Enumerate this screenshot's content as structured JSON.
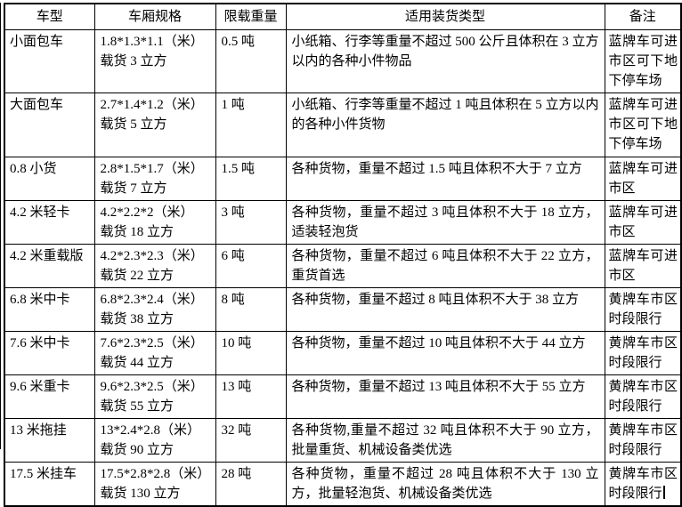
{
  "colors": {
    "text": "#000000",
    "border": "#000000",
    "background": "#ffffff"
  },
  "table": {
    "columns": [
      {
        "key": "type",
        "label": "车型"
      },
      {
        "key": "spec",
        "label": "车厢规格"
      },
      {
        "key": "weight",
        "label": "限载重量"
      },
      {
        "key": "cargo",
        "label": "适用装货类型"
      },
      {
        "key": "remark",
        "label": "备注"
      }
    ],
    "rows": [
      {
        "type": "小面包车",
        "spec": "1.8*1.3*1.1（米）\n载货 3 立方",
        "weight": "0.5 吨",
        "cargo": "小纸箱、行李等重量不超过 500 公斤且体积在 3 立方以内的各种小件物品",
        "remark": "蓝牌车可进市区可下地下停车场"
      },
      {
        "type": "大面包车",
        "spec": "2.7*1.4*1.2（米）\n载货 5 立方",
        "weight": "1 吨",
        "cargo": "小纸箱、行李等重量不超过 1 吨且体积在 5 立方以内的各种小件货物",
        "remark": "蓝牌车可进市区可下地下停车场"
      },
      {
        "type": "0.8 小货",
        "spec": "2.8*1.5*1.7（米）\n载货 7 立方",
        "weight": "1.5 吨",
        "cargo": "各种货物，重量不超过 1.5 吨且体积不大于 7 立方",
        "remark": "蓝牌车可进市区"
      },
      {
        "type": "4.2 米轻卡",
        "spec": "4.2*2.2*2（米）\n载货 18 立方",
        "weight": "3 吨",
        "cargo": "各种货物，重量不超过 3 吨且体积不大于 18 立方，适装轻泡货",
        "remark": "蓝牌车可进市区"
      },
      {
        "type": "4.2 米重载版",
        "spec": "4.2*2.3*2.3（米）\n载货 22 立方",
        "weight": "6 吨",
        "cargo": "各种货物，重量不超过 6 吨且体积不大于 22 立方，重货首选",
        "remark": "蓝牌车可进市区"
      },
      {
        "type": "6.8 米中卡",
        "spec": "6.8*2.3*2.4（米）\n载货 38 立方",
        "weight": "8 吨",
        "cargo": "各种货物，重量不超过 8 吨且体积不大于 38 立方",
        "remark": "黄牌车市区时段限行"
      },
      {
        "type": "7.6 米中卡",
        "spec": "7.6*2.3*2.5（米）\n载货 44 立方",
        "weight": "10 吨",
        "cargo": "各种货物，重量不超过 10 吨且体积不大于 44 立方",
        "remark": "黄牌车市区时段限行"
      },
      {
        "type": "9.6 米重卡",
        "spec": "9.6*2.3*2.5（米）\n载货 55 立方",
        "weight": "13 吨",
        "cargo": "各种货物，重量不超过 13 吨且体积不大于 55 立方",
        "remark": "黄牌车市区时段限行"
      },
      {
        "type": "13 米拖挂",
        "spec": "13*2.4*2.8（米）\n载货 90 立方",
        "weight": "32 吨",
        "cargo": "各种货物,重量不超过 32 吨且体积不大于 90 立方，批量重货、机械设备类优选",
        "remark": "黄牌车市区时段限行"
      },
      {
        "type": "17.5 米挂车",
        "spec": "17.5*2.8*2.8（米）\n载货 130 立方",
        "weight": "28 吨",
        "cargo": "各种货物，重量不超过 28 吨且体积不大于 130 立方，批量轻泡货、机械设备类优选",
        "remark": "黄牌车市区时段限行",
        "cursor_after_remark": true
      }
    ]
  }
}
